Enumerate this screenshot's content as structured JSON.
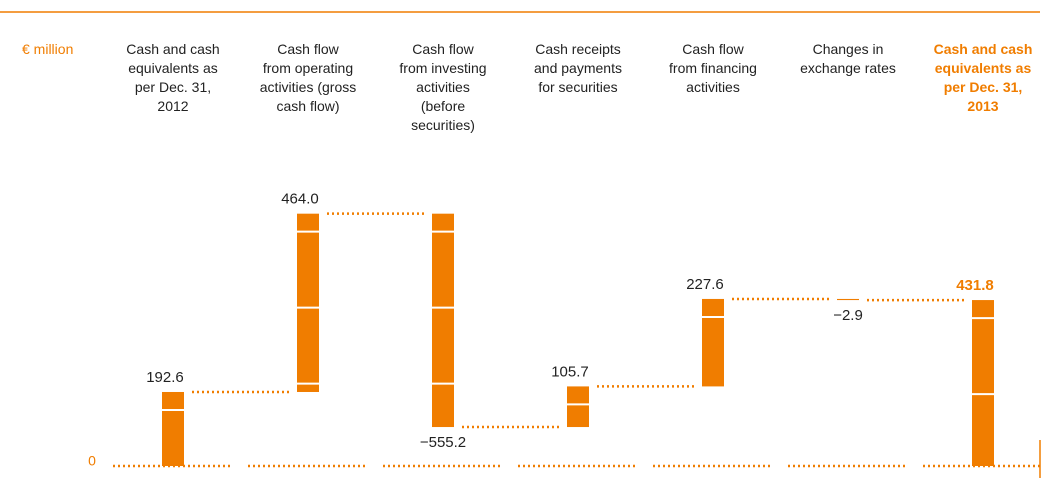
{
  "chart_data": {
    "type": "waterfall",
    "y_label": "€ million",
    "categories": [
      "Cash and cash\nequivalents as\nper Dec. 31,\n2012",
      "Cash flow\nfrom operating\nactivities (gross\ncash flow)",
      "Cash flow\nfrom investing\nactivities\n(before\nsecurities)",
      "Cash receipts\nand payments\nfor securities",
      "Cash flow\nfrom financing\nactivities",
      "Changes in\nexchange rates",
      "Cash and cash\nequivalents as\nper Dec. 31,\n2013"
    ],
    "values": [
      192.6,
      464.0,
      -555.2,
      105.7,
      227.6,
      -2.9,
      431.8
    ],
    "value_labels": [
      "192.6",
      "464.0",
      "−555.2",
      "105.7",
      "227.6",
      "−2.9",
      "431.8"
    ],
    "color": "#f07d00",
    "ylim": [
      0,
      700
    ],
    "yticks": [
      0
    ]
  }
}
